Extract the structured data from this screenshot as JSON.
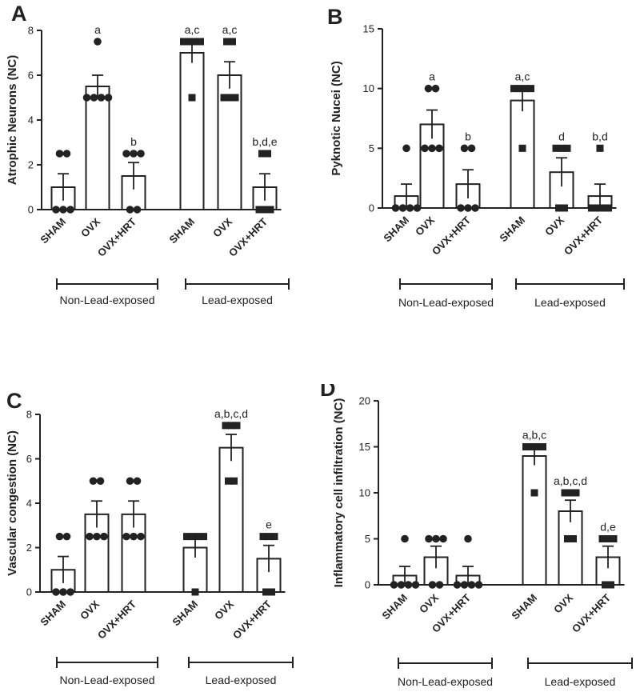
{
  "chart_data": [
    {
      "type": "bar",
      "panel_label": "A",
      "ylabel": "Atrophic Neurons (NC)",
      "ylim": [
        0,
        8
      ],
      "yticks": [
        0,
        2,
        4,
        6,
        8
      ],
      "categories": [
        "SHAM",
        "OVX",
        "OVX+HRT",
        "SHAM",
        "OVX",
        "OVX+HRT"
      ],
      "groups": [
        {
          "label": "Non-Lead-exposed",
          "bars": [
            0,
            1,
            2
          ]
        },
        {
          "label": "Lead-exposed",
          "bars": [
            3,
            4,
            5
          ]
        }
      ],
      "values": [
        1.0,
        5.5,
        1.5,
        7.0,
        6.0,
        1.0
      ],
      "sem": [
        0.6,
        0.5,
        0.6,
        0.45,
        0.6,
        0.6
      ],
      "significance": [
        "",
        "a",
        "b",
        "a,c",
        "a,c",
        "b,d,e"
      ],
      "points": [
        [
          2.5,
          2.5,
          0,
          0,
          0
        ],
        [
          7.5,
          5,
          5,
          5,
          5
        ],
        [
          2.5,
          2.5,
          2.5,
          0,
          0
        ],
        [
          7.5,
          7.5,
          7.5,
          7.5,
          5
        ],
        [
          7.5,
          7.5,
          5,
          5,
          5
        ],
        [
          2.5,
          2.5,
          0,
          0,
          0
        ]
      ]
    },
    {
      "type": "bar",
      "panel_label": "B",
      "ylabel": "Pyknotic Nucei (NC)",
      "ylim": [
        0,
        15
      ],
      "yticks": [
        0,
        5,
        10,
        15
      ],
      "categories": [
        "SHAM",
        "OVX",
        "OVX+HRT",
        "SHAM",
        "OVX",
        "OVX+HRT"
      ],
      "groups": [
        {
          "label": "Non-Lead-exposed",
          "bars": [
            0,
            1,
            2
          ]
        },
        {
          "label": "Lead-exposed",
          "bars": [
            3,
            4,
            5
          ]
        }
      ],
      "values": [
        1.0,
        7.0,
        2.0,
        9.0,
        3.0,
        1.0
      ],
      "sem": [
        1.0,
        1.2,
        1.2,
        0.9,
        1.2,
        1.0
      ],
      "significance": [
        "",
        "a",
        "b",
        "a,c",
        "d",
        "b,d"
      ],
      "points": [
        [
          5,
          0,
          0,
          0,
          0
        ],
        [
          10,
          10,
          5,
          5,
          5
        ],
        [
          5,
          5,
          0,
          0,
          0
        ],
        [
          10,
          10,
          10,
          10,
          5
        ],
        [
          5,
          5,
          5,
          0,
          0
        ],
        [
          5,
          0,
          0,
          0,
          0
        ]
      ]
    },
    {
      "type": "bar",
      "panel_label": "C",
      "ylabel": "Vascular congestion (NC)",
      "ylim": [
        0,
        8
      ],
      "yticks": [
        0,
        2,
        4,
        6,
        8
      ],
      "categories": [
        "SHAM",
        "OVX",
        "OVX+HRT",
        "SHAM",
        "OVX",
        "OVX+HRT"
      ],
      "groups": [
        {
          "label": "Non-Lead-exposed",
          "bars": [
            0,
            1,
            2
          ]
        },
        {
          "label": "Lead-exposed",
          "bars": [
            3,
            4,
            5
          ]
        }
      ],
      "values": [
        1.0,
        3.5,
        3.5,
        2.0,
        6.5,
        1.5
      ],
      "sem": [
        0.6,
        0.6,
        0.6,
        0.45,
        0.6,
        0.6
      ],
      "significance": [
        "",
        "",
        "",
        "",
        "a,b,c,d",
        "e"
      ],
      "points": [
        [
          2.5,
          2.5,
          0,
          0,
          0
        ],
        [
          5,
          5,
          2.5,
          2.5,
          2.5
        ],
        [
          5,
          5,
          2.5,
          2.5,
          2.5
        ],
        [
          2.5,
          2.5,
          2.5,
          2.5,
          0
        ],
        [
          7.5,
          7.5,
          7.5,
          5,
          5
        ],
        [
          2.5,
          2.5,
          2.5,
          0,
          0
        ]
      ]
    },
    {
      "type": "bar",
      "panel_label": "D",
      "ylabel": "Inflammatory cell infiltration (NC)",
      "ylim": [
        0,
        20
      ],
      "yticks": [
        0,
        5,
        10,
        15,
        20
      ],
      "categories": [
        "SHAM",
        "OVX",
        "OVX+HRT",
        "SHAM",
        "OVX",
        "OVX+HRT"
      ],
      "groups": [
        {
          "label": "Non-Lead-exposed",
          "bars": [
            0,
            1,
            2
          ]
        },
        {
          "label": "Lead-exposed",
          "bars": [
            3,
            4,
            5
          ]
        }
      ],
      "values": [
        1.0,
        3.0,
        1.0,
        14.0,
        8.0,
        3.0
      ],
      "sem": [
        1.0,
        1.2,
        1.0,
        1.0,
        1.2,
        1.2
      ],
      "significance": [
        "",
        "",
        "",
        "a,b,c",
        "a,b,c,d",
        "d,e"
      ],
      "points": [
        [
          5,
          0,
          0,
          0,
          0
        ],
        [
          5,
          5,
          5,
          0,
          0
        ],
        [
          5,
          0,
          0,
          0,
          0
        ],
        [
          15,
          15,
          15,
          15,
          10
        ],
        [
          10,
          10,
          10,
          5,
          5
        ],
        [
          5,
          5,
          5,
          0,
          0
        ]
      ]
    }
  ]
}
